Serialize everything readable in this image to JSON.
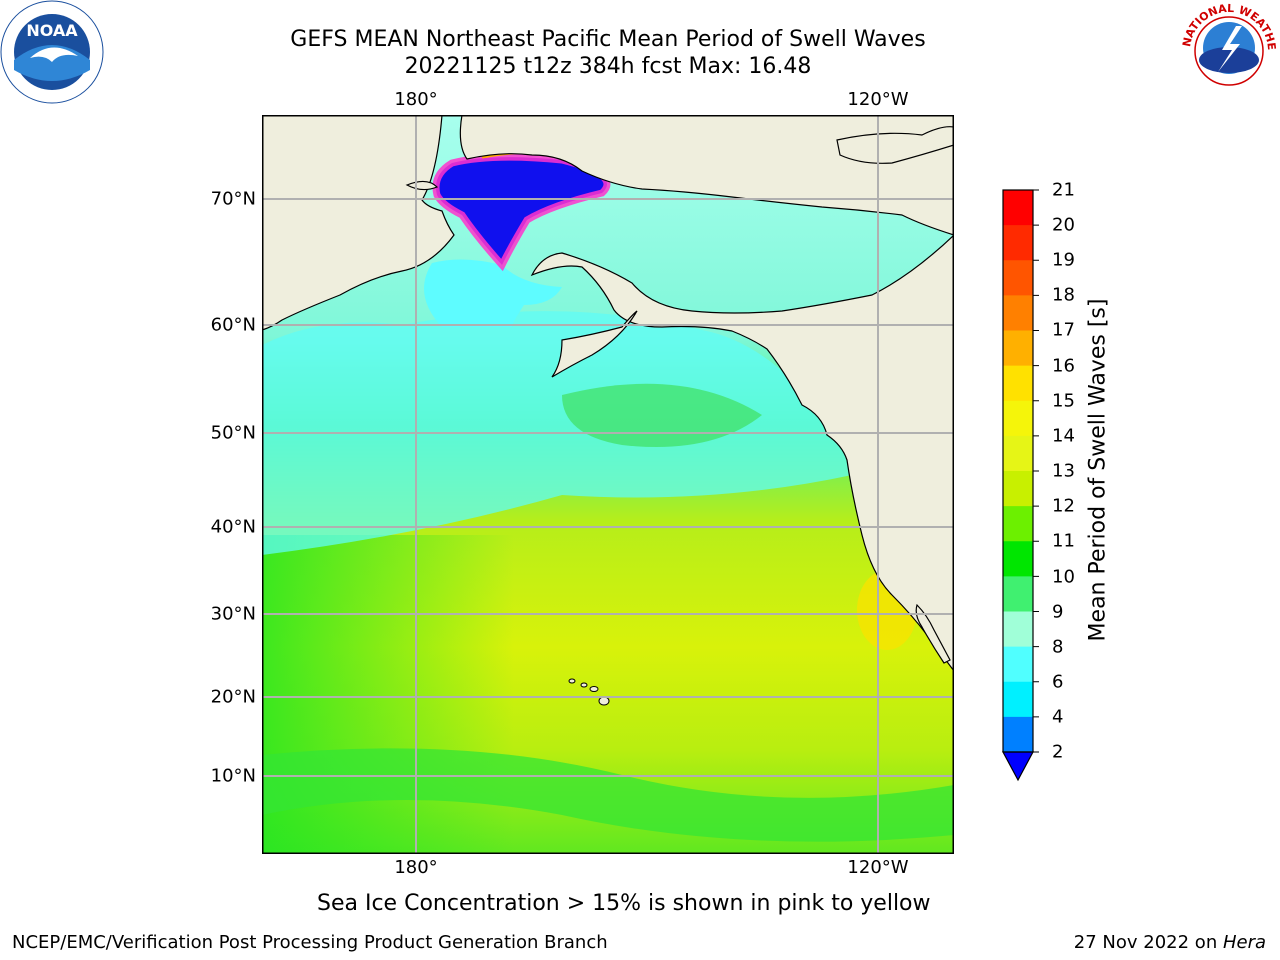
{
  "header": {
    "title_line1": "GEFS MEAN Northeast Pacific Mean Period of Swell Waves",
    "title_line2": "20221125 t12z 384h fcst   Max: 16.48"
  },
  "map": {
    "lon_labels_top": [
      "180°",
      "120°W"
    ],
    "lon_labels_bottom": [
      "180°",
      "120°W"
    ],
    "lat_labels": [
      "70°N",
      "60°N",
      "50°N",
      "40°N",
      "30°N",
      "20°N",
      "10°N"
    ],
    "land_color": "#efeedd",
    "grid_color": "#b0b0b0"
  },
  "colorbar": {
    "ticks": [
      "21",
      "20",
      "19",
      "18",
      "17",
      "16",
      "15",
      "14",
      "13",
      "12",
      "11",
      "10",
      "9",
      "8",
      "6",
      "4",
      "2"
    ],
    "colors": [
      "#ff0000",
      "#ff2a00",
      "#ff5500",
      "#ff8000",
      "#ffb000",
      "#ffe100",
      "#f5f50a",
      "#e6f516",
      "#c8f000",
      "#6cf000",
      "#00e600",
      "#40f070",
      "#a0ffd8",
      "#50ffff",
      "#00f0ff",
      "#0080ff"
    ],
    "extend_color": "#0000ff",
    "label": "Mean Period of Swell Waves [s]"
  },
  "notes": {
    "ice": "Sea Ice Concentration > 15% is shown in pink to yellow"
  },
  "footer": {
    "left": "NCEP/EMC/Verification Post Processing Product Generation Branch",
    "right_date": "27 Nov 2022 on ",
    "right_host": "Hera"
  },
  "logos": {
    "noaa_text": "NOAA",
    "nws_text": "NATIONAL WEATHER SERVICE"
  }
}
